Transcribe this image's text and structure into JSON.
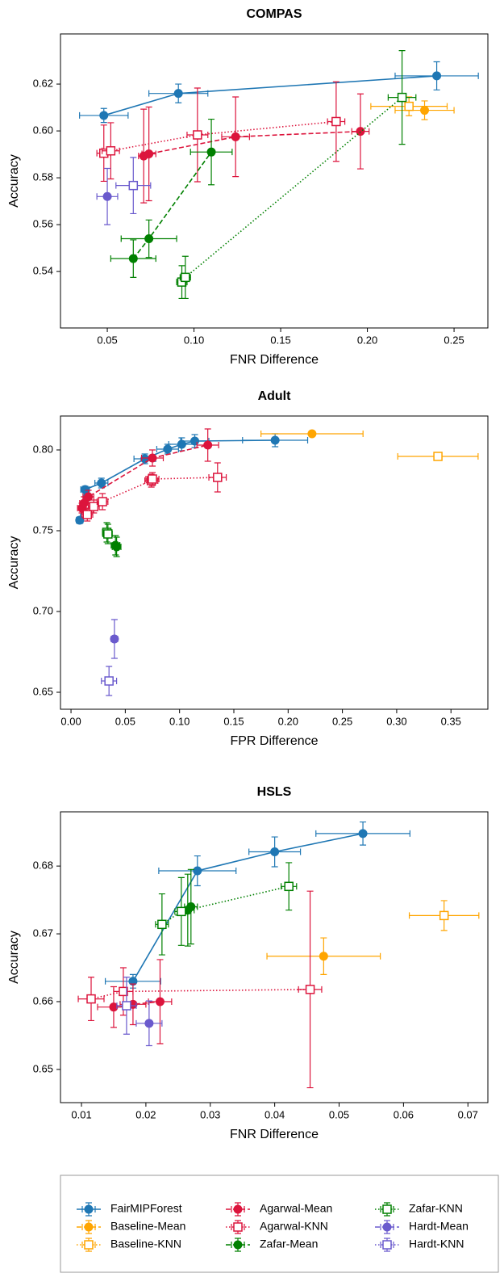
{
  "chart_data": [
    {
      "type": "errorbar",
      "title": "COMPAS",
      "xlabel": "FNR Difference",
      "ylabel": "Accuracy",
      "xlim": [
        0.023,
        0.2695
      ],
      "ylim": [
        0.5159,
        0.6414
      ],
      "xticks": [
        0.05,
        {
          "value": 0.1,
          "label": "0.10"
        },
        0.15,
        {
          "value": 0.2,
          "label": "0.20"
        },
        0.25
      ],
      "yticks": [
        0.54,
        0.56,
        0.58,
        {
          "value": 0.6,
          "label": "0.60"
        },
        0.62
      ],
      "series": [
        {
          "x": [
            0.048,
            0.091,
            0.24
          ],
          "y": [
            0.6066,
            0.616,
            0.6235
          ],
          "xerr": [
            0.014,
            0.017,
            0.024
          ],
          "yerr": [
            0.003,
            0.004,
            0.006
          ]
        },
        {
          "x": [
            0.233
          ],
          "y": [
            0.6088
          ],
          "xerr": [
            0.017
          ],
          "yerr": [
            0.004
          ]
        },
        {
          "x": [
            0.224
          ],
          "y": [
            0.6105
          ],
          "xerr": [
            0.022
          ],
          "yerr": [
            0.004
          ]
        },
        {
          "x": [
            0.071,
            0.074,
            0.124,
            0.196
          ],
          "y": [
            0.5893,
            0.5902,
            0.5975,
            0.5998
          ],
          "xerr": [
            0.003,
            0.004,
            0.008,
            0.005
          ],
          "yerr": [
            0.02,
            0.02,
            0.017,
            0.016
          ]
        },
        {
          "x": [
            0.048,
            0.052,
            0.102,
            0.182
          ],
          "y": [
            0.5905,
            0.5915,
            0.5983,
            0.604
          ],
          "xerr": [
            0.004,
            0.005,
            0.006,
            0.005
          ],
          "yerr": [
            0.012,
            0.012,
            0.02,
            0.017
          ]
        },
        {
          "x": [
            0.065,
            0.074,
            0.11
          ],
          "y": [
            0.5455,
            0.554,
            0.591
          ],
          "xerr": [
            0.013,
            0.016,
            0.012
          ],
          "yerr": [
            0.008,
            0.008,
            0.014
          ]
        },
        {
          "x": [
            0.093,
            0.095,
            0.22
          ],
          "y": [
            0.5355,
            0.5375,
            0.6143
          ],
          "xerr": [
            0.003,
            0.003,
            0.008
          ],
          "yerr": [
            0.007,
            0.009,
            0.02
          ]
        },
        {
          "x": [
            0.05
          ],
          "y": [
            0.572
          ],
          "xerr": [
            0.006
          ],
          "yerr": [
            0.012
          ]
        },
        {
          "x": [
            0.065
          ],
          "y": [
            0.5767
          ],
          "xerr": [
            0.01
          ],
          "yerr": [
            0.012
          ]
        }
      ]
    },
    {
      "type": "errorbar",
      "title": "Adult",
      "xlabel": "FPR Difference",
      "ylabel": "Accuracy",
      "xlim": [
        -0.0097,
        0.384
      ],
      "ylim": [
        0.6395,
        0.821
      ],
      "xticks": [
        {
          "value": 0,
          "label": "0.00"
        },
        0.05,
        {
          "value": 0.1,
          "label": "0.10"
        },
        0.15,
        {
          "value": 0.2,
          "label": "0.20"
        },
        0.25,
        {
          "value": 0.3,
          "label": "0.30"
        },
        0.35
      ],
      "yticks": [
        0.65,
        {
          "value": 0.7,
          "label": "0.70"
        },
        0.75,
        {
          "value": 0.8,
          "label": "0.80"
        }
      ],
      "series": [
        {
          "x": [
            0.008,
            0.013,
            0.028,
            0.068,
            0.089,
            0.102,
            0.114,
            0.188
          ],
          "y": [
            0.7565,
            0.7755,
            0.7795,
            0.7945,
            0.8005,
            0.8035,
            0.8055,
            0.806
          ],
          "xerr": [
            0.003,
            0.004,
            0.006,
            0.01,
            0.01,
            0.012,
            0.013,
            0.03
          ],
          "yerr": [
            0.002,
            0.002,
            0.003,
            0.003,
            0.003,
            0.004,
            0.004,
            0.004
          ]
        },
        {
          "x": [
            0.222
          ],
          "y": [
            0.81
          ],
          "xerr": [
            0.047
          ],
          "yerr": [
            0.001
          ]
        },
        {
          "x": [
            0.338
          ],
          "y": [
            0.796
          ],
          "xerr": [
            0.037
          ],
          "yerr": [
            0.002
          ]
        },
        {
          "x": [
            0.01,
            0.012,
            0.016,
            0.075,
            0.126
          ],
          "y": [
            0.764,
            0.767,
            0.771,
            0.795,
            0.803
          ],
          "xerr": [
            0.004,
            0.004,
            0.005,
            0.01,
            0.01
          ],
          "yerr": [
            0.003,
            0.004,
            0.004,
            0.005,
            0.01
          ]
        },
        {
          "x": [
            0.015,
            0.021,
            0.029,
            0.074,
            0.075,
            0.135
          ],
          "y": [
            0.76,
            0.765,
            0.768,
            0.781,
            0.782,
            0.783
          ],
          "xerr": [
            0.005,
            0.005,
            0.005,
            0.006,
            0.006,
            0.008
          ],
          "yerr": [
            0.004,
            0.004,
            0.005,
            0.004,
            0.004,
            0.009
          ]
        },
        {
          "x": [
            0.041,
            0.042
          ],
          "y": [
            0.741,
            0.74
          ],
          "xerr": [
            0.004,
            0.004
          ],
          "yerr": [
            0.006,
            0.006
          ]
        },
        {
          "x": [
            0.033,
            0.034
          ],
          "y": [
            0.749,
            0.748
          ],
          "xerr": [
            0.004,
            0.004
          ],
          "yerr": [
            0.006,
            0.006
          ]
        },
        {
          "x": [
            0.04
          ],
          "y": [
            0.683
          ],
          "xerr": [
            0.003
          ],
          "yerr": [
            0.012
          ]
        },
        {
          "x": [
            0.035
          ],
          "y": [
            0.657
          ],
          "xerr": [
            0.007
          ],
          "yerr": [
            0.009
          ]
        }
      ]
    },
    {
      "type": "errorbar",
      "title": "HSLS",
      "xlabel": "FNR Difference",
      "ylabel": "Accuracy",
      "xlim": [
        0.00674,
        0.0731
      ],
      "ylim": [
        0.6451,
        0.688
      ],
      "xticks": [
        0.01,
        0.02,
        0.03,
        0.04,
        0.05,
        0.06,
        0.07
      ],
      "yticks": [
        0.65,
        0.66,
        0.67,
        0.68
      ],
      "series": [
        {
          "x": [
            0.018,
            0.028,
            0.04,
            0.0537
          ],
          "y": [
            0.663,
            0.6793,
            0.6821,
            0.6848
          ],
          "xerr": [
            0.0043,
            0.006,
            0.004,
            0.0073
          ],
          "yerr": [
            0.001,
            0.0022,
            0.0022,
            0.0017
          ]
        },
        {
          "x": [
            0.0476
          ],
          "y": [
            0.6667
          ],
          "xerr": [
            0.0088
          ],
          "yerr": [
            0.0027
          ]
        },
        {
          "x": [
            0.0663
          ],
          "y": [
            0.6727
          ],
          "xerr": [
            0.0054
          ],
          "yerr": [
            0.0022
          ]
        },
        {
          "x": [
            0.015,
            0.018,
            0.0222
          ],
          "y": [
            0.6592,
            0.6596,
            0.66
          ],
          "xerr": [
            0.0025,
            0.002,
            0.0018
          ],
          "yerr": [
            0.003,
            0.003,
            0.0062
          ]
        },
        {
          "x": [
            0.0115,
            0.0165,
            0.0455
          ],
          "y": [
            0.6604,
            0.6615,
            0.6618
          ],
          "xerr": [
            0.002,
            0.0015,
            0.0018
          ],
          "yerr": [
            0.0032,
            0.0035,
            0.0145
          ]
        },
        {
          "x": [
            0.0265,
            0.027
          ],
          "y": [
            0.6735,
            0.674
          ],
          "xerr": [
            0.001,
            0.001
          ],
          "yerr": [
            0.0053,
            0.0055
          ]
        },
        {
          "x": [
            0.0225,
            0.0255,
            0.0422
          ],
          "y": [
            0.6714,
            0.6733,
            0.677
          ],
          "xerr": [
            0.001,
            0.001,
            0.0012
          ],
          "yerr": [
            0.0045,
            0.005,
            0.0035
          ]
        },
        {
          "x": [
            0.0205
          ],
          "y": [
            0.6568
          ],
          "xerr": [
            0.002
          ],
          "yerr": [
            0.0033
          ]
        },
        {
          "x": [
            0.017
          ],
          "y": [
            0.6594
          ],
          "xerr": [
            0.0015
          ],
          "yerr": [
            0.0042
          ]
        }
      ]
    }
  ],
  "legend": {
    "entries": [
      {
        "name": "FairMIPForest",
        "color": "#1f77b4",
        "line": "solid",
        "marker": "filled"
      },
      {
        "name": "Baseline-Mean",
        "color": "#ffa500",
        "line": "dashed",
        "marker": "filled"
      },
      {
        "name": "Baseline-KNN",
        "color": "#ffa500",
        "line": "dotted",
        "marker": "open"
      },
      {
        "name": "Agarwal-Mean",
        "color": "#dc143c",
        "line": "dashed",
        "marker": "filled"
      },
      {
        "name": "Agarwal-KNN",
        "color": "#dc143c",
        "line": "dotted",
        "marker": "open"
      },
      {
        "name": "Zafar-Mean",
        "color": "#008000",
        "line": "dashed",
        "marker": "filled"
      },
      {
        "name": "Zafar-KNN",
        "color": "#008000",
        "line": "dotted",
        "marker": "open"
      },
      {
        "name": "Hardt-Mean",
        "color": "#6a5acd",
        "line": "dashed",
        "marker": "filled"
      },
      {
        "name": "Hardt-KNN",
        "color": "#6a5acd",
        "line": "dotted",
        "marker": "open"
      }
    ]
  }
}
